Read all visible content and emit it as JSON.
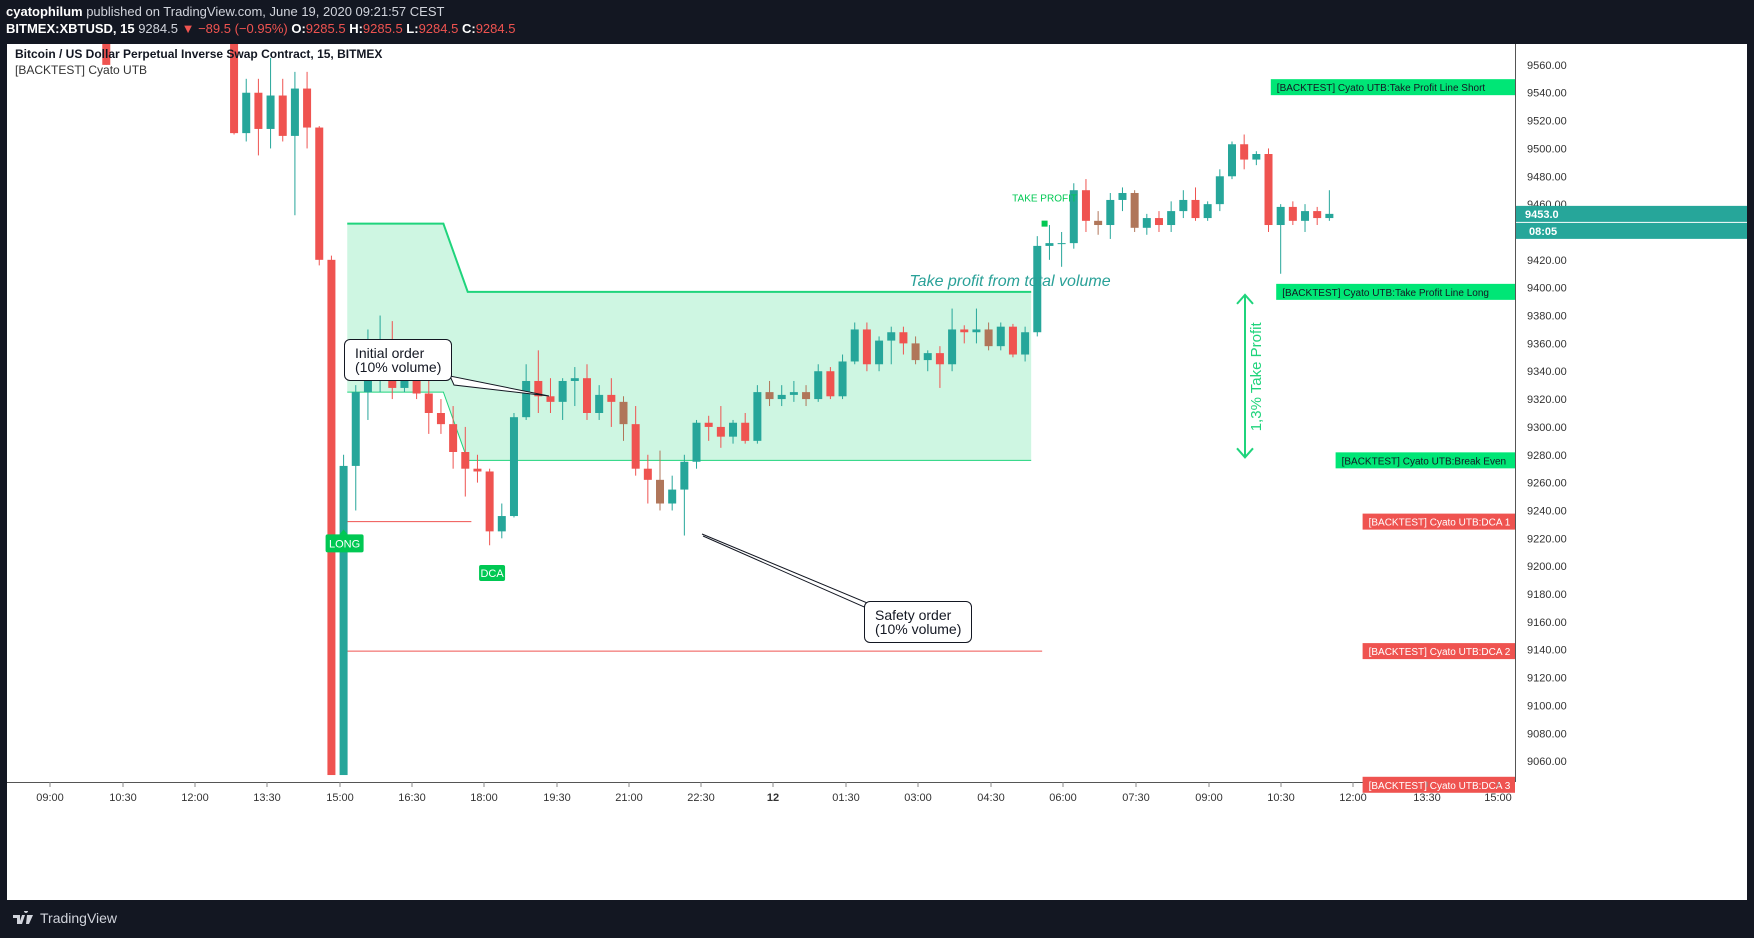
{
  "header": {
    "publisher": "cyatophilum",
    "published_text": "published on TradingView.com, June 19, 2020 09:21:57 CEST",
    "symbol": "BITMEX:XBTUSD, 15",
    "last": "9284.5",
    "change_arrow": "▼",
    "change": "−89.5 (−0.95%)",
    "o_label": "O:",
    "o_val": "9285.5",
    "h_label": "H:",
    "h_val": "9285.5",
    "l_label": "L:",
    "l_val": "9284.5",
    "c_label": "C:",
    "c_val": "9284.5"
  },
  "legend": {
    "title": "Bitcoin / US Dollar Perpetual Inverse Swap Contract, 15, BITMEX",
    "indicator": "[BACKTEST] Cyato UTB"
  },
  "annotations": {
    "initial_order": "Initial order\n(10% volume)",
    "safety_order": "Safety order\n(10% volume)",
    "take_profit_text": "Take profit from total volume",
    "take_profit_pct": "1,3% Take Profit",
    "long_label": "LONG",
    "dca_label": "DCA",
    "tp_label": "TAKE PROFIT"
  },
  "footer": {
    "brand": "TradingView"
  },
  "colors": {
    "bg": "#ffffff",
    "up": "#26a69a",
    "down": "#ef5350",
    "brown": "#b0765a",
    "green_line": "#1fd47c",
    "green_fill": "#c9f5df",
    "text_teal": "#2aa198"
  },
  "chart_data": {
    "type": "candlestick",
    "title": "Bitcoin / US Dollar Perpetual Inverse Swap Contract, 15, BITMEX",
    "ylim": [
      9045,
      9575
    ],
    "y_ticks": [
      9060,
      9080,
      9100,
      9120,
      9140,
      9160,
      9180,
      9200,
      9220,
      9240,
      9260,
      9280,
      9300,
      9320,
      9340,
      9360,
      9380,
      9400,
      9420,
      9440,
      9460,
      9480,
      9500,
      9520,
      9540,
      9560
    ],
    "x_ticks": [
      "09:00",
      "10:30",
      "12:00",
      "13:30",
      "15:00",
      "16:30",
      "18:00",
      "19:30",
      "21:00",
      "22:30",
      "12",
      "01:30",
      "03:00",
      "04:30",
      "06:00",
      "07:30",
      "09:00",
      "10:30",
      "12:00",
      "13:30",
      "15:00"
    ],
    "grid": false,
    "price_tags": [
      {
        "label": "[BACKTEST] Cyato UTB:Take Profit Line Short",
        "price": 9544,
        "color": "#00e676"
      },
      {
        "label": "[BACKTEST] Cyato UTB:Take Profit Line Long",
        "price": 9397,
        "color": "#00e676"
      },
      {
        "label": "[BACKTEST] Cyato UTB:Break Even",
        "price": 9276,
        "color": "#00e676"
      },
      {
        "label": "[BACKTEST] Cyato UTB:DCA 1",
        "price": 9232,
        "color": "#ef5350"
      },
      {
        "label": "[BACKTEST] Cyato UTB:DCA 2",
        "price": 9139,
        "color": "#ef5350"
      },
      {
        "label": "[BACKTEST] Cyato UTB:DCA 3",
        "price": 9043,
        "color": "#ef5350"
      }
    ],
    "last_price": {
      "value": "9453.0",
      "countdown": "08:05",
      "price": 9453
    },
    "tp_zone": {
      "upper_start": 9446,
      "upper_end": 9397,
      "lower_start": 9325,
      "lower_end": 9276,
      "dca1": 9232,
      "dca2": 9139
    },
    "candles": [
      {
        "t": 7.5,
        "o": 9600,
        "h": 9600,
        "l": 9560,
        "c": 9560
      },
      {
        "t": 18,
        "o": 9600,
        "h": 9600,
        "l": 9510,
        "c": 9511
      },
      {
        "t": 19,
        "o": 9511,
        "h": 9550,
        "l": 9505,
        "c": 9540
      },
      {
        "t": 20,
        "o": 9540,
        "h": 9550,
        "l": 9495,
        "c": 9514
      },
      {
        "t": 21,
        "o": 9514,
        "h": 9565,
        "l": 9500,
        "c": 9538
      },
      {
        "t": 22,
        "o": 9538,
        "h": 9550,
        "l": 9505,
        "c": 9509
      },
      {
        "t": 23,
        "o": 9509,
        "h": 9555,
        "l": 9452,
        "c": 9543
      },
      {
        "t": 24,
        "o": 9543,
        "h": 9555,
        "l": 9500,
        "c": 9515
      },
      {
        "t": 25,
        "o": 9515,
        "h": 9516,
        "l": 9416,
        "c": 9420
      },
      {
        "t": 26,
        "o": 9420,
        "h": 9423,
        "l": 9050,
        "c": 9050
      },
      {
        "t": 27,
        "o": 9050,
        "h": 9280,
        "l": 9050,
        "c": 9272
      },
      {
        "t": 28,
        "o": 9272,
        "h": 9330,
        "l": 9240,
        "c": 9325
      },
      {
        "t": 29,
        "o": 9325,
        "h": 9370,
        "l": 9305,
        "c": 9349
      },
      {
        "t": 30,
        "o": 9349,
        "h": 9380,
        "l": 9325,
        "c": 9363
      },
      {
        "t": 31,
        "o": 9363,
        "h": 9376,
        "l": 9320,
        "c": 9328
      },
      {
        "t": 32,
        "o": 9328,
        "h": 9360,
        "l": 9325,
        "c": 9357
      },
      {
        "t": 33,
        "o": 9357,
        "h": 9360,
        "l": 9320,
        "c": 9324
      },
      {
        "t": 34,
        "o": 9324,
        "h": 9335,
        "l": 9295,
        "c": 9310
      },
      {
        "t": 35,
        "o": 9310,
        "h": 9320,
        "l": 9295,
        "c": 9302
      },
      {
        "t": 36,
        "o": 9302,
        "h": 9315,
        "l": 9270,
        "c": 9282
      },
      {
        "t": 37,
        "o": 9282,
        "h": 9300,
        "l": 9250,
        "c": 9270
      },
      {
        "t": 38,
        "o": 9270,
        "h": 9280,
        "l": 9260,
        "c": 9268
      },
      {
        "t": 39,
        "o": 9268,
        "h": 9270,
        "l": 9215,
        "c": 9225
      },
      {
        "t": 40,
        "o": 9225,
        "h": 9245,
        "l": 9220,
        "c": 9236
      },
      {
        "t": 41,
        "o": 9236,
        "h": 9310,
        "l": 9235,
        "c": 9307
      },
      {
        "t": 42,
        "o": 9307,
        "h": 9345,
        "l": 9305,
        "c": 9333
      },
      {
        "t": 43,
        "o": 9333,
        "h": 9355,
        "l": 9310,
        "c": 9322
      },
      {
        "t": 44,
        "o": 9322,
        "h": 9335,
        "l": 9310,
        "c": 9318
      },
      {
        "t": 45,
        "o": 9318,
        "h": 9335,
        "l": 9305,
        "c": 9333
      },
      {
        "t": 46,
        "o": 9333,
        "h": 9343,
        "l": 9315,
        "c": 9335
      },
      {
        "t": 47,
        "o": 9335,
        "h": 9345,
        "l": 9305,
        "c": 9310
      },
      {
        "t": 48,
        "o": 9310,
        "h": 9330,
        "l": 9305,
        "c": 9323
      },
      {
        "t": 49,
        "o": 9323,
        "h": 9335,
        "l": 9300,
        "c": 9318
      },
      {
        "t": 50,
        "o": 9318,
        "h": 9322,
        "l": 9290,
        "c": 9302
      },
      {
        "t": 51,
        "o": 9302,
        "h": 9315,
        "l": 9265,
        "c": 9270
      },
      {
        "t": 52,
        "o": 9270,
        "h": 9280,
        "l": 9245,
        "c": 9262
      },
      {
        "t": 53,
        "o": 9262,
        "h": 9283,
        "l": 9240,
        "c": 9245
      },
      {
        "t": 54,
        "o": 9245,
        "h": 9265,
        "l": 9240,
        "c": 9255
      },
      {
        "t": 55,
        "o": 9255,
        "h": 9280,
        "l": 9222,
        "c": 9275
      },
      {
        "t": 56,
        "o": 9275,
        "h": 9305,
        "l": 9270,
        "c": 9303
      },
      {
        "t": 57,
        "o": 9303,
        "h": 9308,
        "l": 9290,
        "c": 9300
      },
      {
        "t": 58,
        "o": 9300,
        "h": 9315,
        "l": 9285,
        "c": 9293
      },
      {
        "t": 59,
        "o": 9293,
        "h": 9305,
        "l": 9288,
        "c": 9303
      },
      {
        "t": 60,
        "o": 9303,
        "h": 9310,
        "l": 9288,
        "c": 9290
      },
      {
        "t": 61,
        "o": 9290,
        "h": 9330,
        "l": 9288,
        "c": 9325
      },
      {
        "t": 62,
        "o": 9325,
        "h": 9333,
        "l": 9315,
        "c": 9320
      },
      {
        "t": 63,
        "o": 9320,
        "h": 9330,
        "l": 9315,
        "c": 9323
      },
      {
        "t": 64,
        "o": 9323,
        "h": 9333,
        "l": 9318,
        "c": 9325
      },
      {
        "t": 65,
        "o": 9325,
        "h": 9330,
        "l": 9315,
        "c": 9320
      },
      {
        "t": 66,
        "o": 9320,
        "h": 9345,
        "l": 9318,
        "c": 9340
      },
      {
        "t": 67,
        "o": 9340,
        "h": 9343,
        "l": 9320,
        "c": 9322
      },
      {
        "t": 68,
        "o": 9322,
        "h": 9352,
        "l": 9320,
        "c": 9347
      },
      {
        "t": 69,
        "o": 9347,
        "h": 9375,
        "l": 9345,
        "c": 9370
      },
      {
        "t": 70,
        "o": 9370,
        "h": 9375,
        "l": 9340,
        "c": 9345
      },
      {
        "t": 71,
        "o": 9345,
        "h": 9365,
        "l": 9340,
        "c": 9362
      },
      {
        "t": 72,
        "o": 9362,
        "h": 9372,
        "l": 9345,
        "c": 9368
      },
      {
        "t": 73,
        "o": 9368,
        "h": 9372,
        "l": 9352,
        "c": 9360
      },
      {
        "t": 74,
        "o": 9360,
        "h": 9365,
        "l": 9345,
        "c": 9348
      },
      {
        "t": 75,
        "o": 9348,
        "h": 9355,
        "l": 9340,
        "c": 9353
      },
      {
        "t": 76,
        "o": 9353,
        "h": 9358,
        "l": 9328,
        "c": 9345
      },
      {
        "t": 77,
        "o": 9345,
        "h": 9385,
        "l": 9340,
        "c": 9370
      },
      {
        "t": 78,
        "o": 9370,
        "h": 9373,
        "l": 9360,
        "c": 9368
      },
      {
        "t": 79,
        "o": 9368,
        "h": 9385,
        "l": 9360,
        "c": 9370
      },
      {
        "t": 80,
        "o": 9370,
        "h": 9375,
        "l": 9355,
        "c": 9358
      },
      {
        "t": 81,
        "o": 9358,
        "h": 9375,
        "l": 9355,
        "c": 9372
      },
      {
        "t": 82,
        "o": 9372,
        "h": 9374,
        "l": 9350,
        "c": 9352
      },
      {
        "t": 83,
        "o": 9352,
        "h": 9372,
        "l": 9347,
        "c": 9368
      },
      {
        "t": 84,
        "o": 9368,
        "h": 9437,
        "l": 9365,
        "c": 9430
      },
      {
        "t": 85,
        "o": 9430,
        "h": 9445,
        "l": 9420,
        "c": 9432
      },
      {
        "t": 86,
        "o": 9432,
        "h": 9440,
        "l": 9415,
        "c": 9432
      },
      {
        "t": 87,
        "o": 9432,
        "h": 9475,
        "l": 9428,
        "c": 9470
      },
      {
        "t": 88,
        "o": 9470,
        "h": 9478,
        "l": 9440,
        "c": 9448
      },
      {
        "t": 89,
        "o": 9448,
        "h": 9455,
        "l": 9438,
        "c": 9445
      },
      {
        "t": 90,
        "o": 9445,
        "h": 9468,
        "l": 9435,
        "c": 9463
      },
      {
        "t": 91,
        "o": 9463,
        "h": 9472,
        "l": 9455,
        "c": 9468
      },
      {
        "t": 92,
        "o": 9468,
        "h": 9470,
        "l": 9440,
        "c": 9443
      },
      {
        "t": 93,
        "o": 9443,
        "h": 9453,
        "l": 9438,
        "c": 9450
      },
      {
        "t": 94,
        "o": 9450,
        "h": 9455,
        "l": 9440,
        "c": 9445
      },
      {
        "t": 95,
        "o": 9445,
        "h": 9462,
        "l": 9440,
        "c": 9455
      },
      {
        "t": 96,
        "o": 9455,
        "h": 9470,
        "l": 9450,
        "c": 9463
      },
      {
        "t": 97,
        "o": 9463,
        "h": 9472,
        "l": 9448,
        "c": 9450
      },
      {
        "t": 98,
        "o": 9450,
        "h": 9462,
        "l": 9448,
        "c": 9460
      },
      {
        "t": 99,
        "o": 9460,
        "h": 9485,
        "l": 9455,
        "c": 9480
      },
      {
        "t": 100,
        "o": 9480,
        "h": 9505,
        "l": 9478,
        "c": 9503
      },
      {
        "t": 101,
        "o": 9503,
        "h": 9510,
        "l": 9485,
        "c": 9492
      },
      {
        "t": 102,
        "o": 9492,
        "h": 9498,
        "l": 9488,
        "c": 9496
      },
      {
        "t": 103,
        "o": 9496,
        "h": 9500,
        "l": 9440,
        "c": 9445
      },
      {
        "t": 104,
        "o": 9445,
        "h": 9460,
        "l": 9410,
        "c": 9458
      },
      {
        "t": 105,
        "o": 9458,
        "h": 9462,
        "l": 9445,
        "c": 9448
      },
      {
        "t": 106,
        "o": 9448,
        "h": 9460,
        "l": 9440,
        "c": 9455
      },
      {
        "t": 107,
        "o": 9455,
        "h": 9458,
        "l": 9445,
        "c": 9450
      },
      {
        "t": 108,
        "o": 9450,
        "h": 9470,
        "l": 9448,
        "c": 9453
      }
    ]
  }
}
